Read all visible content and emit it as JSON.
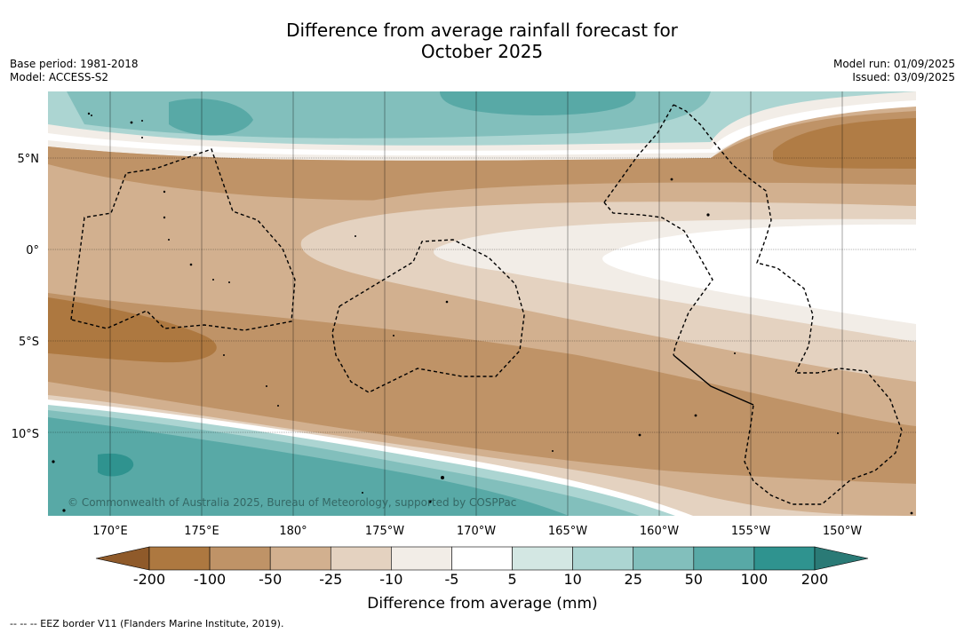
{
  "header": {
    "title_line1": "Difference from average rainfall forecast for",
    "title_line2": "October 2025",
    "base_period": "Base period: 1981-2018",
    "model": "Model: ACCESS-S2",
    "model_run": "Model run: 01/09/2025",
    "issued": "Issued: 03/09/2025"
  },
  "map": {
    "lat_labels": [
      "5°N",
      "0°",
      "5°S",
      "10°S"
    ],
    "lon_labels": [
      "170°E",
      "175°E",
      "180°",
      "175°W",
      "170°W",
      "165°W",
      "160°W",
      "155°W",
      "150°W"
    ],
    "copyright": "© Commonwealth of Australia 2025, Bureau of Meteorology, supported by COSPPac"
  },
  "legend": {
    "title": "Difference from average (mm)",
    "ticks": [
      "-200",
      "-100",
      "-50",
      "-25",
      "-10",
      "-5",
      "5",
      "10",
      "25",
      "50",
      "100",
      "200"
    ],
    "colors": [
      "#8f5a2a",
      "#ad7840",
      "#bf9367",
      "#d2b08f",
      "#e4d2c0",
      "#f2ede7",
      "#ffffff",
      "#d3e7e3",
      "#acd5d2",
      "#82bfbc",
      "#58a9a6",
      "#2f938f",
      "#2a7a76"
    ]
  },
  "footnote": "-- -- -- EEZ border V11 (Flanders Marine Institute, 2019)."
}
